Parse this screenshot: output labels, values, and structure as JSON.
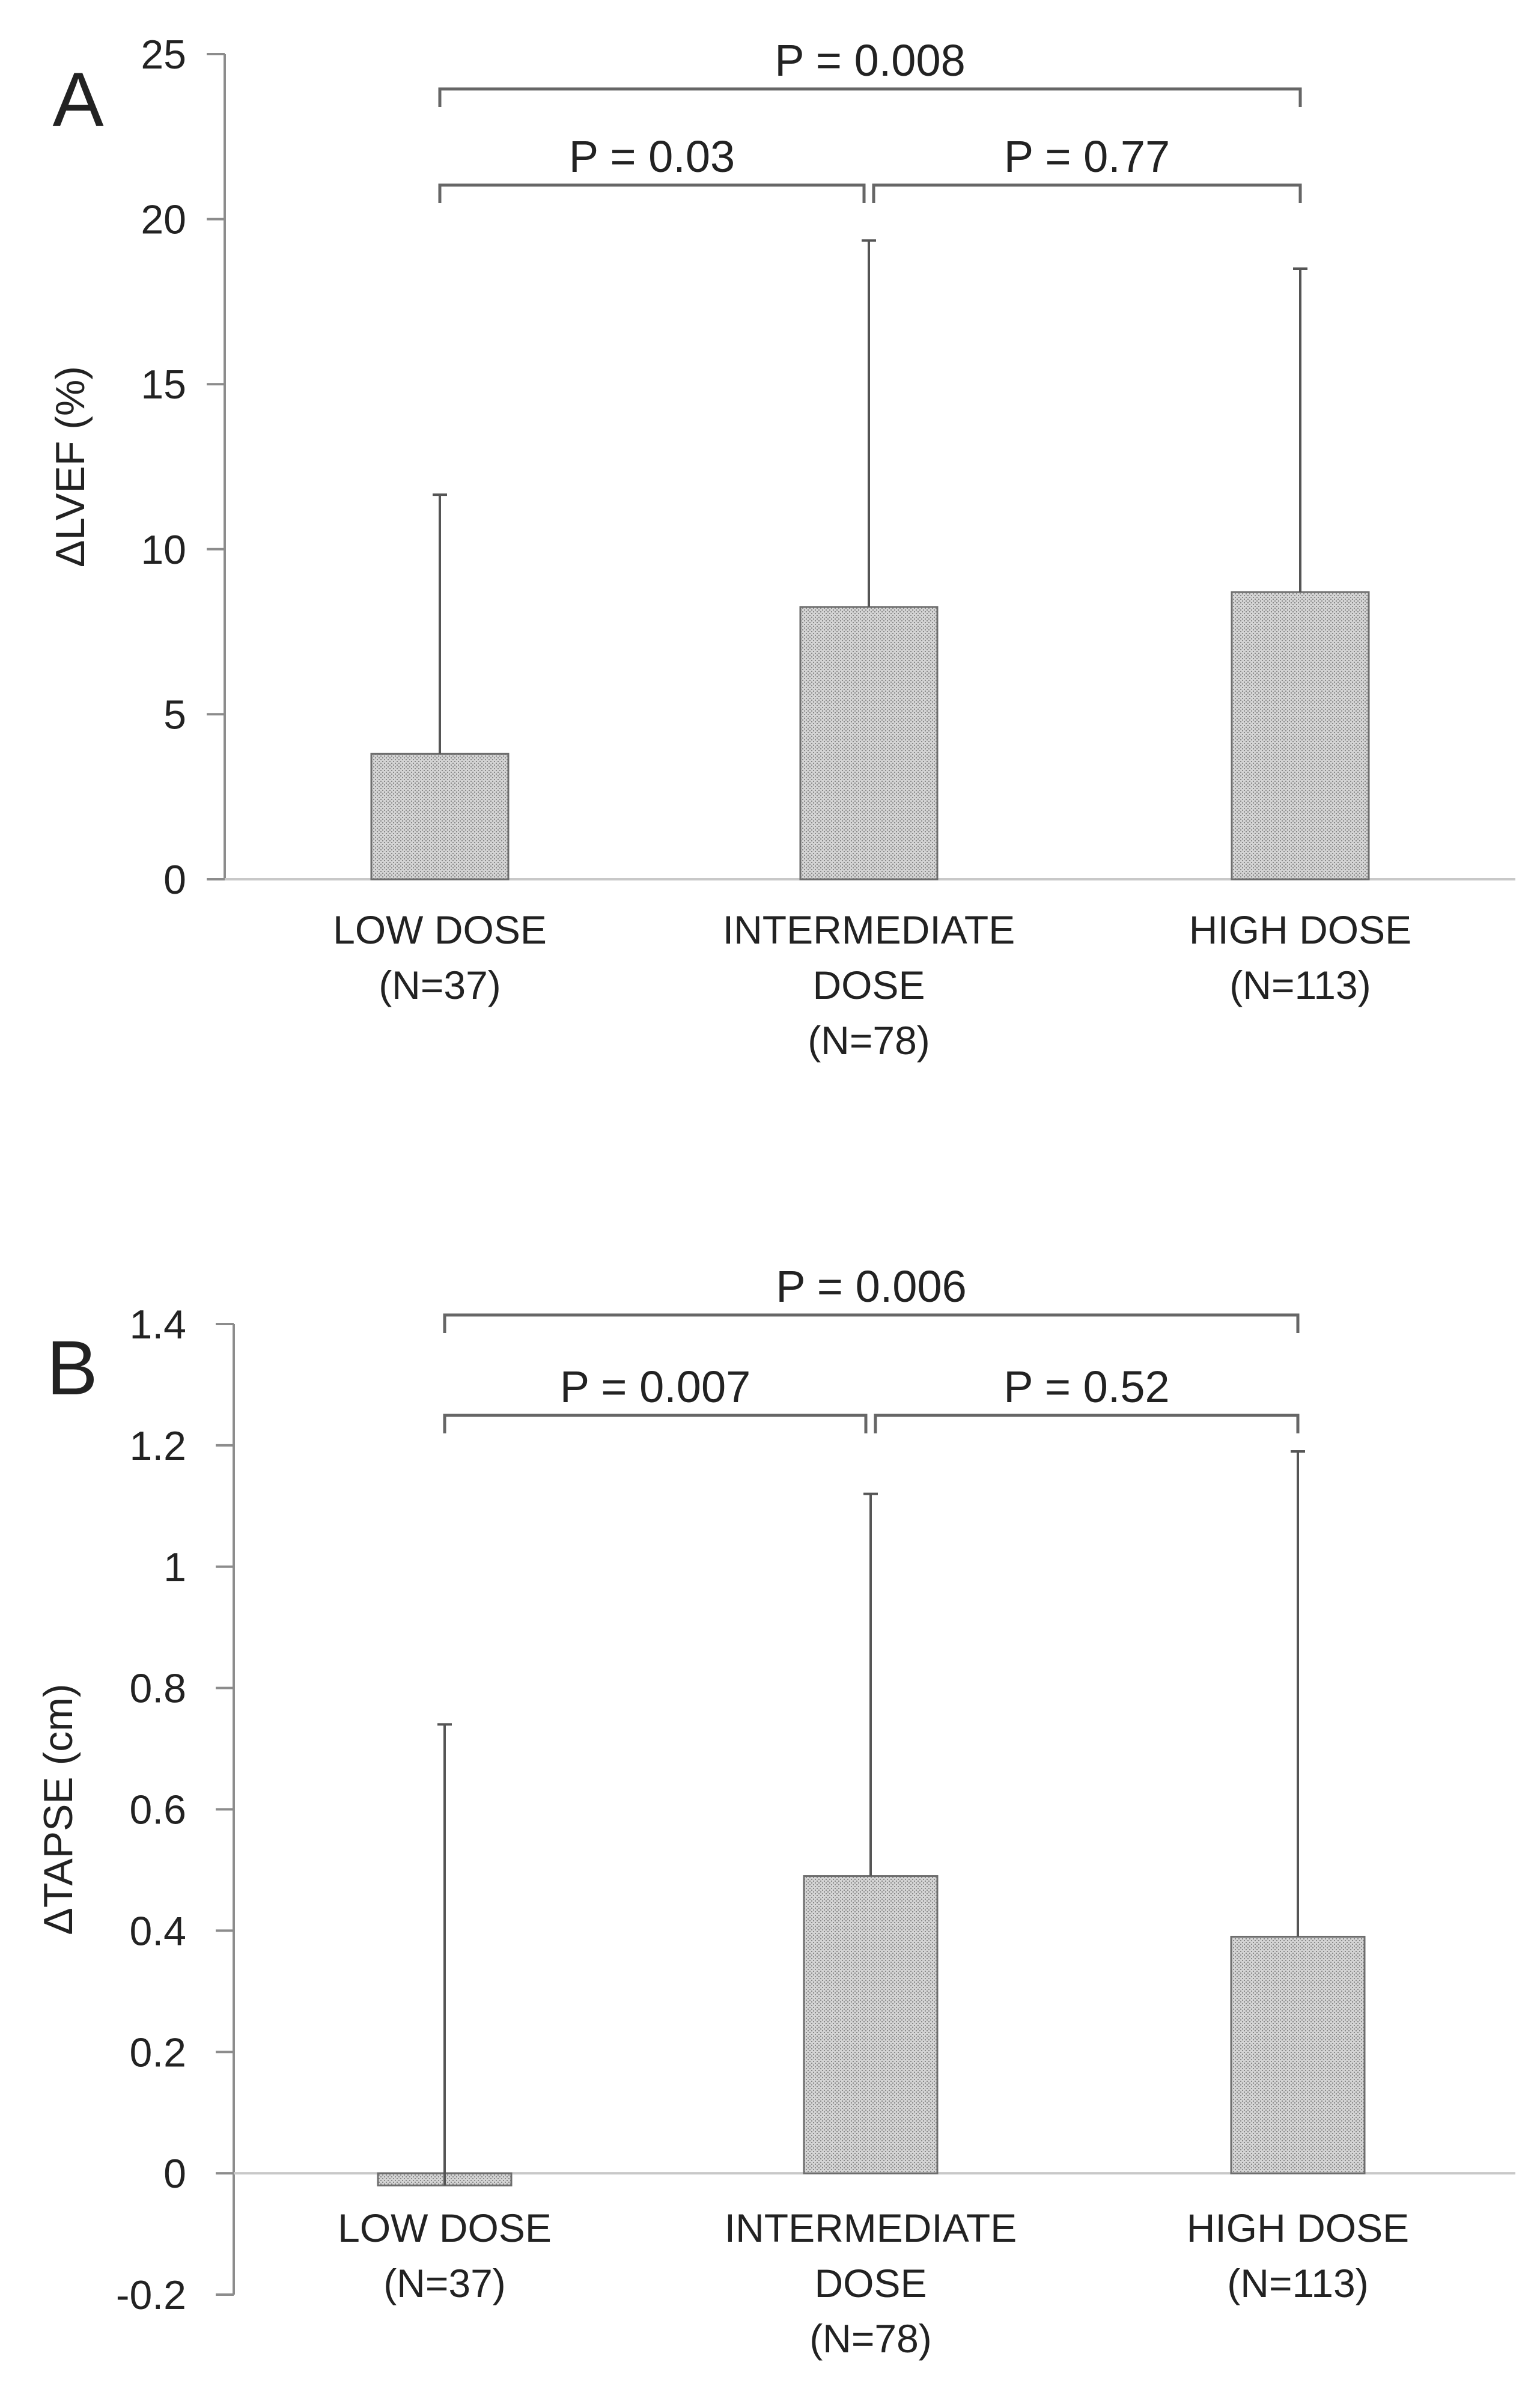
{
  "chart_data": [
    {
      "type": "bar",
      "panel_letter": "A",
      "ylabel": "ΔLVEF (%)",
      "xlabel": "",
      "ylim": [
        0,
        25
      ],
      "yticks": [
        0,
        5,
        10,
        15,
        20,
        25
      ],
      "ytick_labels": [
        "0",
        "5",
        "10",
        "15",
        "20",
        "25"
      ],
      "categories": [
        [
          "LOW DOSE",
          "(N=37)"
        ],
        [
          "INTERMEDIATE",
          "DOSE",
          "(N=78)"
        ],
        [
          "HIGH DOSE",
          "(N=113)"
        ]
      ],
      "values": [
        3.8,
        8.25,
        8.7
      ],
      "error_upper": [
        11.65,
        19.35,
        18.5
      ],
      "grid": false,
      "comparisons": [
        {
          "from": 0,
          "to": 2,
          "label": "P = 0.008",
          "level": 2
        },
        {
          "from": 0,
          "to": 1,
          "label": "P = 0.03",
          "level": 1
        },
        {
          "from": 1,
          "to": 2,
          "label": "P = 0.77",
          "level": 1
        }
      ]
    },
    {
      "type": "bar",
      "panel_letter": "B",
      "ylabel": "ΔTAPSE (cm)",
      "xlabel": "",
      "ylim": [
        -0.2,
        1.4
      ],
      "yticks": [
        -0.2,
        0,
        0.2,
        0.4,
        0.6,
        0.8,
        1,
        1.2,
        1.4
      ],
      "ytick_labels": [
        "-0.2",
        "0",
        "0.2",
        "0.4",
        "0.6",
        "0.8",
        "1",
        "1.2",
        "1.4"
      ],
      "categories": [
        [
          "LOW DOSE",
          "(N=37)"
        ],
        [
          "INTERMEDIATE",
          "DOSE",
          "(N=78)"
        ],
        [
          "HIGH DOSE",
          "(N=113)"
        ]
      ],
      "values": [
        -0.02,
        0.49,
        0.39
      ],
      "error_upper": [
        0.74,
        1.12,
        1.19
      ],
      "grid": false,
      "comparisons": [
        {
          "from": 0,
          "to": 2,
          "label": "P = 0.006",
          "level": 2
        },
        {
          "from": 0,
          "to": 1,
          "label": "P = 0.007",
          "level": 1
        },
        {
          "from": 1,
          "to": 2,
          "label": "P = 0.52",
          "level": 1
        }
      ]
    }
  ],
  "colors": {
    "bar_fill": "#d4d4d4",
    "bar_dot": "#8a8a8a",
    "bar_stroke": "#6e6e6e",
    "axis": "#8c8c8c",
    "bracket": "#666666",
    "error_bar": "#555555",
    "text": "#222222"
  }
}
